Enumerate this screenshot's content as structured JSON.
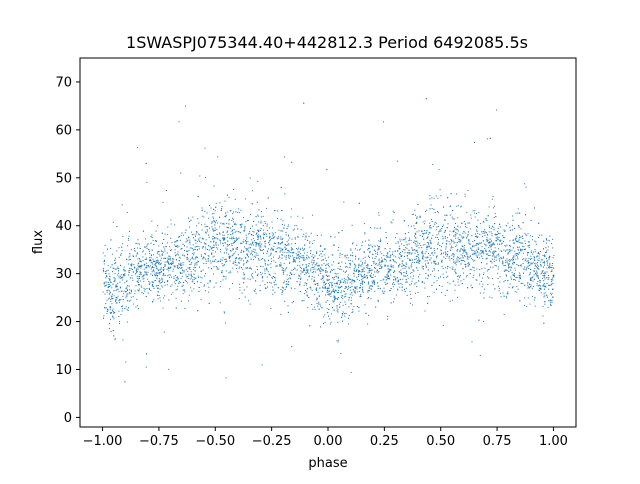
{
  "chart_data": {
    "type": "scatter",
    "title": "1SWASPJ075344.40+442812.3 Period 6492085.5s",
    "xlabel": "phase",
    "ylabel": "flux",
    "xlim": [
      -1.1,
      1.1
    ],
    "ylim": [
      -2,
      75
    ],
    "xticks": [
      -1.0,
      -0.75,
      -0.5,
      -0.25,
      0.0,
      0.25,
      0.5,
      0.75,
      1.0
    ],
    "xtick_labels": [
      "−1.00",
      "−0.75",
      "−0.50",
      "−0.25",
      "0.00",
      "0.25",
      "0.50",
      "0.75",
      "1.00"
    ],
    "yticks": [
      0,
      10,
      20,
      30,
      40,
      50,
      60,
      70
    ],
    "ytick_labels": [
      "0",
      "10",
      "20",
      "30",
      "40",
      "50",
      "60",
      "70"
    ],
    "grid": false,
    "marker_color": "#1f77b4",
    "series": [
      {
        "phase_profile": [
          {
            "x": 0.0,
            "y": 28.5,
            "spread": 7
          },
          {
            "x": 0.05,
            "y": 26.5,
            "spread": 8
          },
          {
            "x": 0.1,
            "y": 28.0,
            "spread": 8
          },
          {
            "x": 0.15,
            "y": 30.5,
            "spread": 6
          },
          {
            "x": 0.2,
            "y": 31.0,
            "spread": 6
          },
          {
            "x": 0.25,
            "y": 31.5,
            "spread": 6
          },
          {
            "x": 0.3,
            "y": 32.0,
            "spread": 6
          },
          {
            "x": 0.35,
            "y": 32.5,
            "spread": 7
          },
          {
            "x": 0.4,
            "y": 34.0,
            "spread": 8
          },
          {
            "x": 0.45,
            "y": 36.0,
            "spread": 8
          },
          {
            "x": 0.5,
            "y": 36.5,
            "spread": 8
          },
          {
            "x": 0.55,
            "y": 36.0,
            "spread": 8
          },
          {
            "x": 0.6,
            "y": 35.5,
            "spread": 8
          },
          {
            "x": 0.65,
            "y": 35.0,
            "spread": 8
          },
          {
            "x": 0.7,
            "y": 35.5,
            "spread": 8
          },
          {
            "x": 0.75,
            "y": 34.5,
            "spread": 8
          },
          {
            "x": 0.8,
            "y": 34.0,
            "spread": 7
          },
          {
            "x": 0.85,
            "y": 33.0,
            "spread": 7
          },
          {
            "x": 0.9,
            "y": 31.5,
            "spread": 7
          },
          {
            "x": 0.95,
            "y": 30.0,
            "spread": 7
          },
          {
            "x": 1.0,
            "y": 29.0,
            "spread": 7
          }
        ],
        "phase_range": [
          -1.0,
          1.0
        ],
        "y_min": 2,
        "y_max": 71
      }
    ]
  }
}
